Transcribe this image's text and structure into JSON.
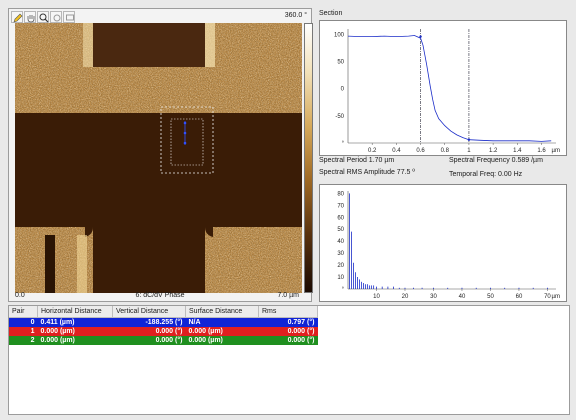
{
  "image_panel": {
    "scale_max": "360.0 °",
    "scale_min": "0.0",
    "title": "6: dC/dV Phase",
    "size": "7.0 µm"
  },
  "toolbar": {
    "tools": [
      {
        "name": "pencil-icon"
      },
      {
        "name": "hand-icon"
      },
      {
        "name": "zoom-icon"
      },
      {
        "name": "reset-icon"
      },
      {
        "name": "screen-icon"
      }
    ]
  },
  "section": {
    "title": "Section",
    "spectral_period": "Spectral Period 1.70 µm",
    "spectral_frequency": "Spectral Frequency 0.589 /µm",
    "spectral_rms": "Spectral RMS Amplitude 77.5 º",
    "temporal_freq": "Temporal Freq: 0.00 Hz",
    "profile_plot": {
      "y_ticks": [
        "100",
        "50",
        "0",
        "-50",
        "°"
      ],
      "x_ticks": [
        "0.2",
        "0.4",
        "0.6",
        "0.8",
        "1",
        "1.2",
        "1.4",
        "1.6"
      ],
      "x_unit": "µm"
    },
    "spectrum_plot": {
      "y_ticks": [
        "80",
        "70",
        "60",
        "50",
        "40",
        "30",
        "20",
        "10",
        "°"
      ],
      "x_ticks": [
        "10",
        "20",
        "30",
        "40",
        "50",
        "60",
        "70"
      ],
      "x_unit": "µm"
    }
  },
  "measurements": {
    "headers": [
      "Pair",
      "Horizontal Distance",
      "Vertical Distance",
      "Surface Distance",
      "Rms"
    ],
    "rows": [
      {
        "pair": "0",
        "h": "0.411 (µm)",
        "v": "-188.255 (°)",
        "s": "N/A",
        "rms": "0.797 (°)",
        "color": "#1024d6"
      },
      {
        "pair": "1",
        "h": "0.000 (µm)",
        "v": "0.000 (°)",
        "s": "0.000 (µm)",
        "rms": "0.000 (°)",
        "color": "#e01f1f"
      },
      {
        "pair": "2",
        "h": "0.000 (µm)",
        "v": "0.000 (°)",
        "s": "0.000 (µm)",
        "rms": "0.000 (°)",
        "color": "#1f8f1f"
      }
    ]
  },
  "chart_data": [
    {
      "type": "line",
      "title": "Section",
      "xlabel": "µm",
      "ylabel": "°",
      "xlim": [
        0,
        1.72
      ],
      "ylim": [
        -100,
        110
      ],
      "cursors_x": [
        0.6,
        1.0
      ],
      "x": [
        0.0,
        0.1,
        0.2,
        0.3,
        0.4,
        0.5,
        0.55,
        0.6,
        0.62,
        0.65,
        0.68,
        0.7,
        0.72,
        0.75,
        0.8,
        0.85,
        0.9,
        0.95,
        1.0,
        1.1,
        1.2,
        1.3,
        1.4,
        1.5,
        1.6,
        1.68
      ],
      "y": [
        97,
        96,
        96,
        97,
        96,
        97,
        98,
        93,
        80,
        45,
        5,
        -20,
        -40,
        -55,
        -68,
        -78,
        -85,
        -90,
        -94,
        -95,
        -96,
        -96,
        -96,
        -96,
        -97,
        -96
      ]
    },
    {
      "type": "bar",
      "xlabel": "µm",
      "xlim": [
        0,
        73
      ],
      "ylim": [
        0,
        82
      ],
      "x": [
        0.5,
        1.2,
        1.9,
        2.6,
        3.3,
        4.0,
        4.7,
        5.4,
        6.1,
        6.8,
        7.5,
        8.2,
        9.0,
        10,
        12,
        14,
        16,
        18,
        20,
        23,
        26,
        30,
        35,
        40,
        45,
        50,
        55,
        60,
        65,
        70
      ],
      "values": [
        80,
        48,
        22,
        14,
        10,
        8,
        6,
        5,
        4,
        4,
        3,
        3,
        3,
        2,
        2,
        2,
        2,
        1,
        1,
        1,
        1,
        1,
        1,
        1,
        1,
        1,
        1,
        1,
        1,
        1
      ]
    }
  ]
}
